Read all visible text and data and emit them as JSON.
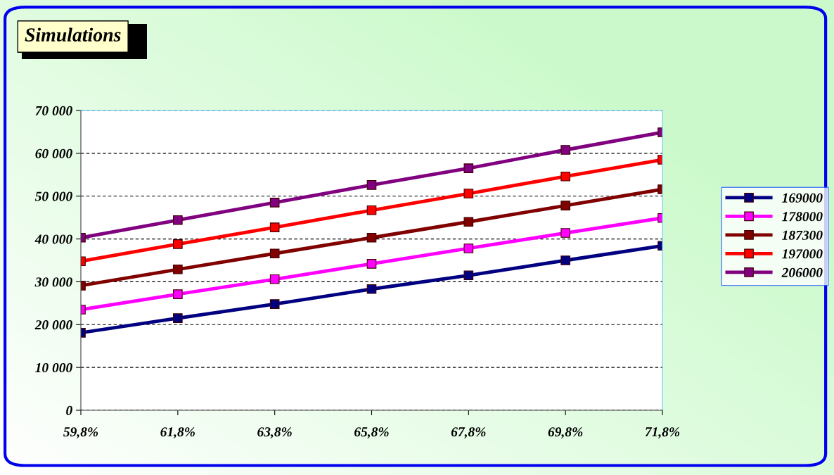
{
  "chart_data": {
    "type": "line",
    "title": "Simulations",
    "categories": [
      "59,8%",
      "61,8%",
      "63,8%",
      "65,8%",
      "67,8%",
      "69,8%",
      "71,8%"
    ],
    "series": [
      {
        "name": "169000",
        "color": "#000080",
        "values": [
          18100,
          21500,
          24800,
          28300,
          31500,
          35000,
          38400
        ]
      },
      {
        "name": "178000",
        "color": "#ff00ff",
        "values": [
          23500,
          27100,
          30600,
          34200,
          37800,
          41400,
          44900
        ]
      },
      {
        "name": "187300",
        "color": "#800000",
        "values": [
          29100,
          32900,
          36600,
          40300,
          44000,
          47800,
          51600
        ]
      },
      {
        "name": "197000",
        "color": "#ff0000",
        "values": [
          34800,
          38800,
          42700,
          46700,
          50600,
          54600,
          58500
        ]
      },
      {
        "name": "206000",
        "color": "#800080",
        "values": [
          40300,
          44400,
          48500,
          52600,
          56500,
          60800,
          64900
        ]
      }
    ],
    "ylim": [
      0,
      70000
    ],
    "yticks": [
      0,
      {
        "value": 10000,
        "label": "10 000"
      },
      {
        "value": 20000,
        "label": "20 000"
      },
      {
        "value": 30000,
        "label": "30 000"
      },
      {
        "value": 40000,
        "label": "40 000"
      },
      {
        "value": 50000,
        "label": "50 000"
      },
      {
        "value": 60000,
        "label": "60 000"
      },
      {
        "value": 70000,
        "label": "70 000"
      }
    ],
    "grid": "y",
    "legend": "right",
    "marker": "square",
    "line_style": "solid"
  }
}
